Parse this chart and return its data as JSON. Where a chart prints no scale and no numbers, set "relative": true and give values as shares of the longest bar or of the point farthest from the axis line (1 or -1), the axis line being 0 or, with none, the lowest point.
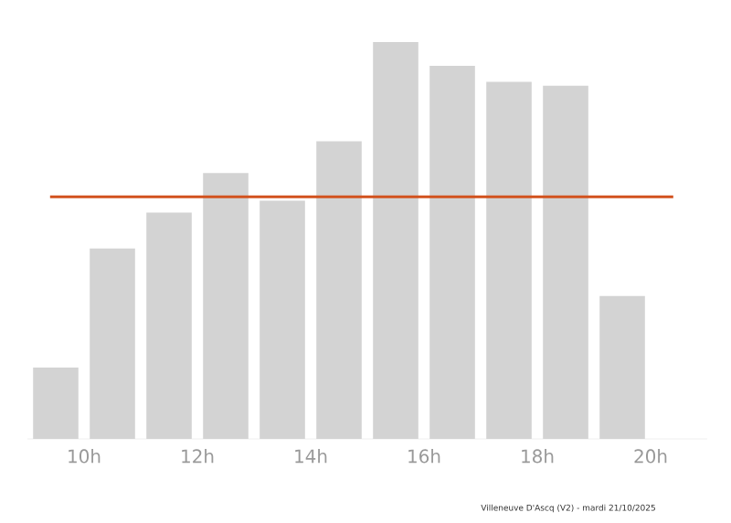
{
  "chart_data": {
    "type": "bar",
    "relative": true,
    "x": [
      9.5,
      10.5,
      11.5,
      12.5,
      13.5,
      14.5,
      15.5,
      16.5,
      17.5,
      18.5,
      19.5
    ],
    "values": [
      0.18,
      0.48,
      0.57,
      0.67,
      0.6,
      0.75,
      1,
      0.94,
      0.9,
      0.89,
      0.36
    ],
    "color": "#d3d3d3",
    "xlim": [
      9,
      21
    ],
    "xticks": [
      {
        "value": 10,
        "label": "10h"
      },
      {
        "value": 12,
        "label": "12h"
      },
      {
        "value": 14,
        "label": "14h"
      },
      {
        "value": 16,
        "label": "16h"
      },
      {
        "value": 18,
        "label": "18h"
      },
      {
        "value": 20,
        "label": "20h"
      }
    ],
    "ref_lines": [
      {
        "axis": "y",
        "value": 0.61,
        "color": "#d2521e"
      }
    ],
    "annotations": [
      "Villeneuve D'Ascq (V2) - mardi 21/10/2025"
    ],
    "grid": false
  }
}
